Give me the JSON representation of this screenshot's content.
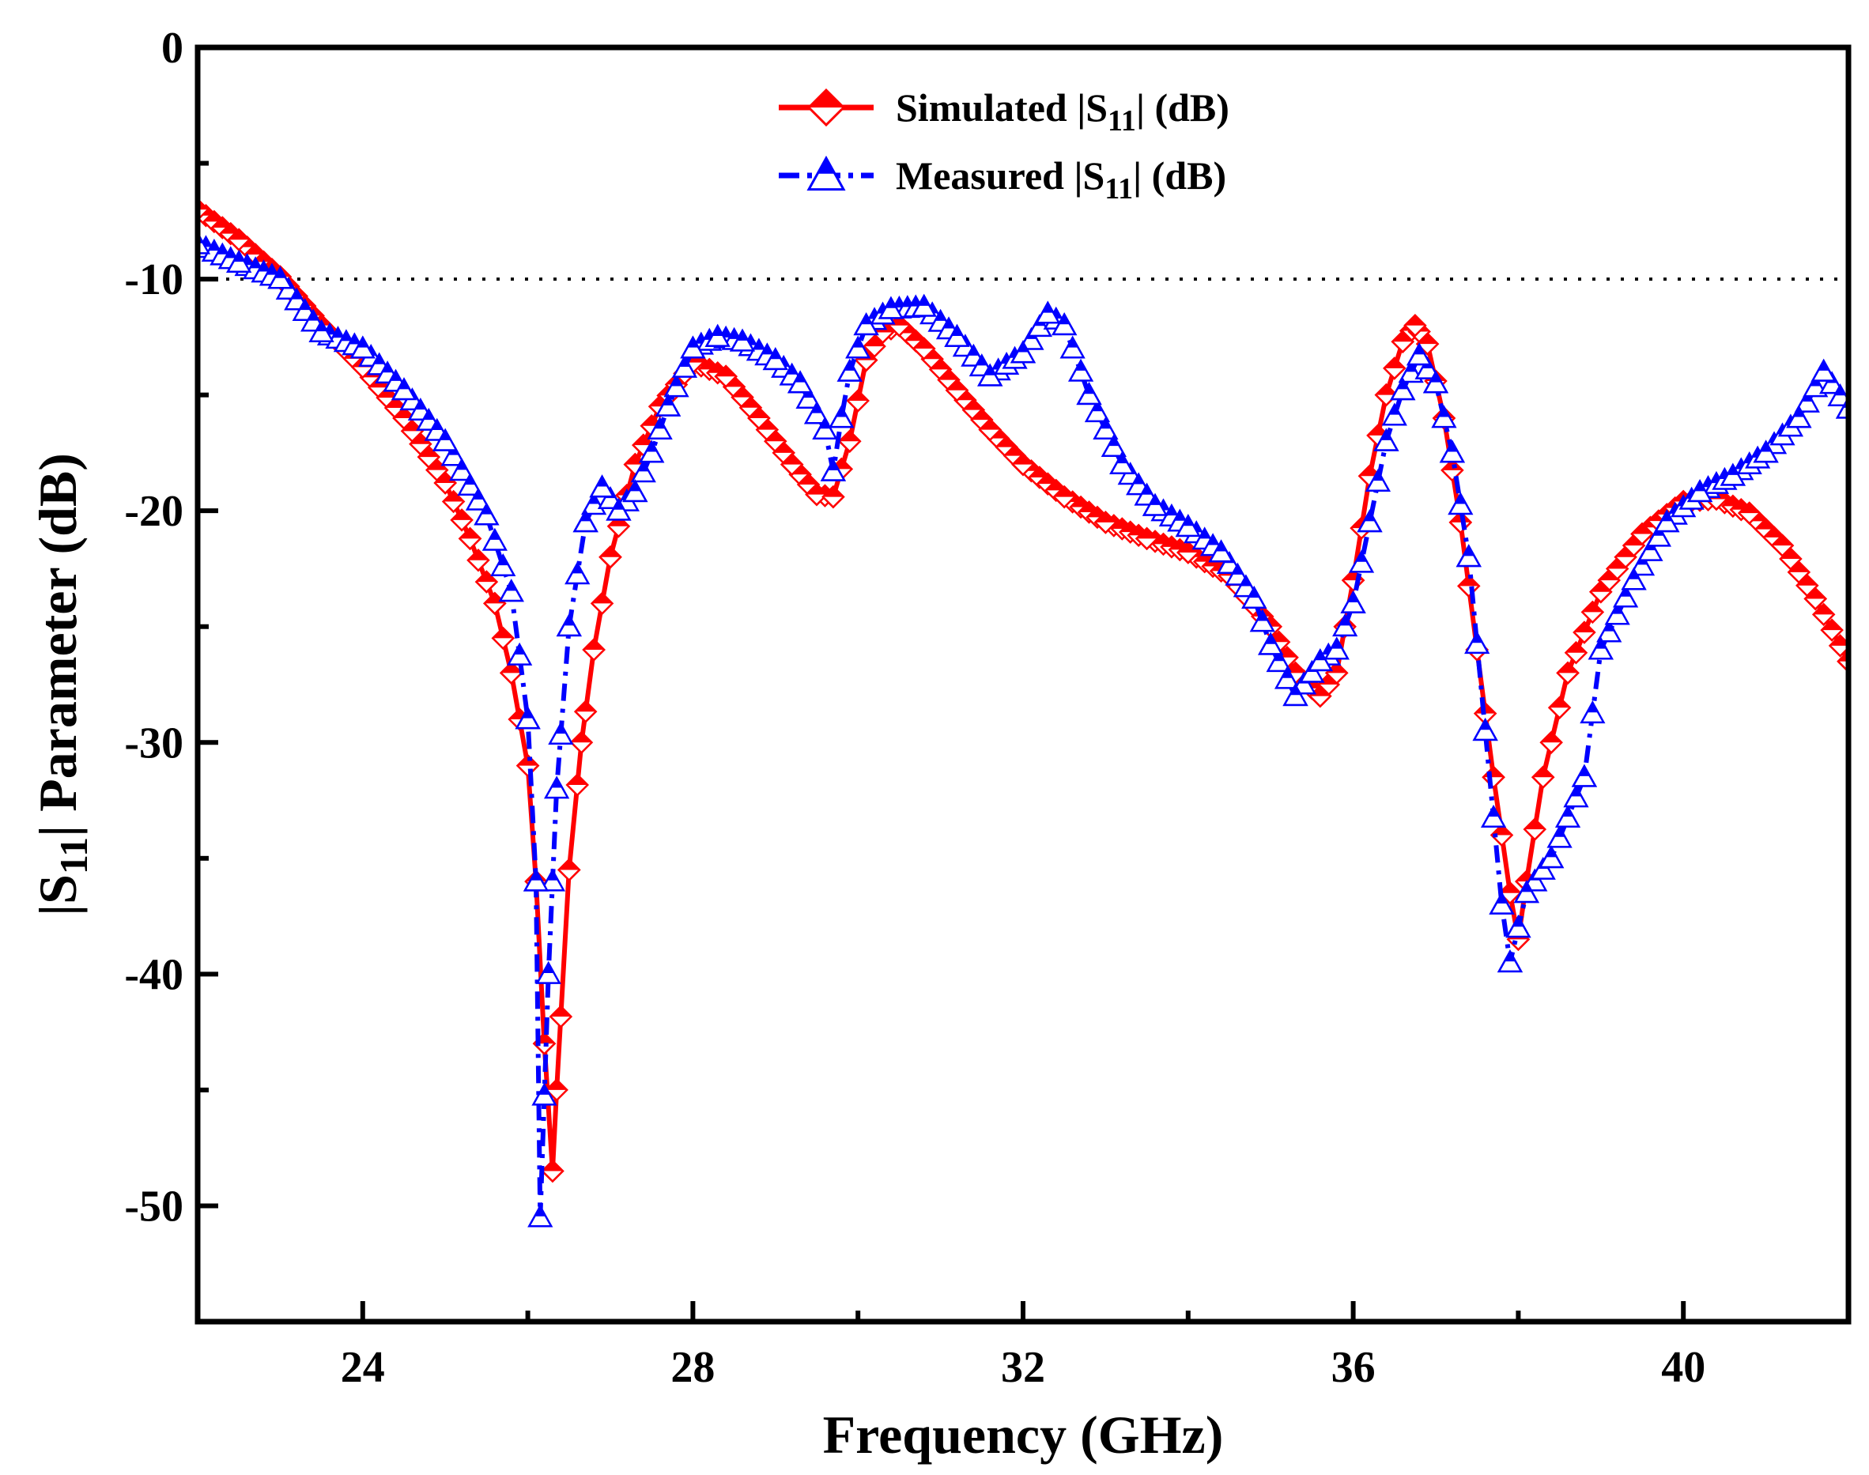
{
  "chart_data": {
    "type": "line",
    "title": "",
    "xlabel": "Frequency (GHz)",
    "ylabel_prefix": "|S",
    "ylabel_sub": "11",
    "ylabel_suffix": "| Parameter (dB)",
    "xlim": [
      22,
      42
    ],
    "ylim": [
      -55,
      0
    ],
    "xticks": [
      24,
      28,
      32,
      36,
      40
    ],
    "xtick_labels": [
      "24",
      "28",
      "32",
      "36",
      "40"
    ],
    "yticks": [
      0,
      -10,
      -20,
      -30,
      -40,
      -50
    ],
    "ytick_labels": [
      "0",
      "-10",
      "-20",
      "-30",
      "-40",
      "-50"
    ],
    "reference_line_y": -10,
    "grid": false,
    "legend_position": "top-center",
    "series": [
      {
        "name": "Simulated |S11| (dB)",
        "legend_prefix": "Simulated |S",
        "legend_sub": "11",
        "legend_suffix": "| (dB)",
        "color": "#ff0000",
        "line_style": "solid",
        "marker": "diamond",
        "x": [
          22.0,
          22.5,
          23.0,
          23.5,
          24.0,
          24.5,
          25.0,
          25.3,
          25.6,
          25.8,
          26.0,
          26.1,
          26.2,
          26.3,
          26.35,
          26.5,
          26.65,
          26.8,
          27.0,
          27.3,
          27.6,
          28.0,
          28.4,
          28.8,
          29.2,
          29.5,
          29.7,
          29.9,
          30.1,
          30.3,
          30.5,
          30.8,
          31.2,
          31.6,
          32.0,
          32.5,
          33.0,
          33.5,
          34.0,
          34.5,
          35.0,
          35.3,
          35.6,
          35.8,
          36.0,
          36.2,
          36.4,
          36.6,
          36.75,
          36.9,
          37.1,
          37.3,
          37.5,
          37.7,
          37.9,
          38.0,
          38.1,
          38.3,
          38.6,
          39.0,
          39.5,
          40.0,
          40.4,
          40.8,
          41.2,
          41.6,
          42.0
        ],
        "y": [
          -7.0,
          -8.3,
          -9.9,
          -12.0,
          -13.8,
          -16.0,
          -18.8,
          -21.2,
          -24.0,
          -27.0,
          -31.0,
          -36.0,
          -43.0,
          -48.5,
          -45.0,
          -35.5,
          -30.0,
          -26.0,
          -22.0,
          -18.0,
          -15.5,
          -13.6,
          -14.2,
          -16.0,
          -18.0,
          -19.3,
          -19.4,
          -17.0,
          -13.5,
          -12.3,
          -12.0,
          -13.0,
          -14.8,
          -16.5,
          -18.0,
          -19.4,
          -20.5,
          -21.2,
          -21.8,
          -22.8,
          -25.0,
          -27.0,
          -28.0,
          -27.0,
          -23.0,
          -18.5,
          -15.0,
          -12.7,
          -12.0,
          -12.8,
          -16.0,
          -20.5,
          -26.0,
          -31.5,
          -36.5,
          -38.5,
          -36.0,
          -31.5,
          -27.0,
          -23.5,
          -21.0,
          -19.6,
          -19.5,
          -20.1,
          -21.5,
          -23.8,
          -26.5
        ]
      },
      {
        "name": "Measured |S11| (dB)",
        "legend_prefix": "Measured |S",
        "legend_sub": "11",
        "legend_suffix": "| (dB)",
        "color": "#0000ff",
        "line_style": "dashdot",
        "marker": "triangle",
        "x": [
          22.0,
          22.5,
          23.0,
          23.5,
          24.0,
          24.5,
          25.0,
          25.5,
          25.8,
          26.0,
          26.1,
          26.15,
          26.25,
          26.35,
          26.5,
          26.7,
          26.9,
          27.1,
          27.3,
          27.5,
          27.7,
          28.0,
          28.3,
          28.6,
          29.0,
          29.3,
          29.6,
          29.7,
          29.8,
          29.9,
          30.1,
          30.4,
          30.8,
          31.2,
          31.6,
          32.0,
          32.3,
          32.5,
          32.8,
          33.2,
          33.6,
          34.0,
          34.4,
          34.8,
          35.0,
          35.3,
          35.6,
          35.8,
          36.0,
          36.2,
          36.4,
          36.6,
          36.8,
          37.0,
          37.2,
          37.4,
          37.6,
          37.8,
          37.9,
          38.0,
          38.1,
          38.4,
          38.8,
          39.0,
          39.4,
          39.8,
          40.2,
          40.6,
          41.0,
          41.4,
          41.7,
          42.0
        ],
        "y": [
          -8.5,
          -9.3,
          -10.0,
          -12.3,
          -13.0,
          -14.8,
          -17.0,
          -20.2,
          -23.5,
          -29.0,
          -36.0,
          -50.5,
          -40.0,
          -32.0,
          -25.0,
          -20.5,
          -19.0,
          -20.0,
          -19.2,
          -17.5,
          -15.5,
          -13.0,
          -12.5,
          -12.7,
          -13.5,
          -14.5,
          -16.5,
          -18.3,
          -16.0,
          -14.0,
          -12.0,
          -11.3,
          -11.2,
          -12.5,
          -14.2,
          -13.2,
          -11.5,
          -12.0,
          -15.0,
          -18.0,
          -19.8,
          -20.7,
          -21.8,
          -23.8,
          -25.8,
          -28.0,
          -26.5,
          -26.0,
          -24.0,
          -20.5,
          -17.0,
          -14.8,
          -13.3,
          -14.5,
          -17.5,
          -22.0,
          -29.5,
          -37.0,
          -39.5,
          -38.0,
          -36.5,
          -35.0,
          -31.5,
          -26.0,
          -23.0,
          -20.5,
          -19.2,
          -18.5,
          -17.5,
          -16.0,
          -14.0,
          -15.6
        ]
      }
    ]
  }
}
